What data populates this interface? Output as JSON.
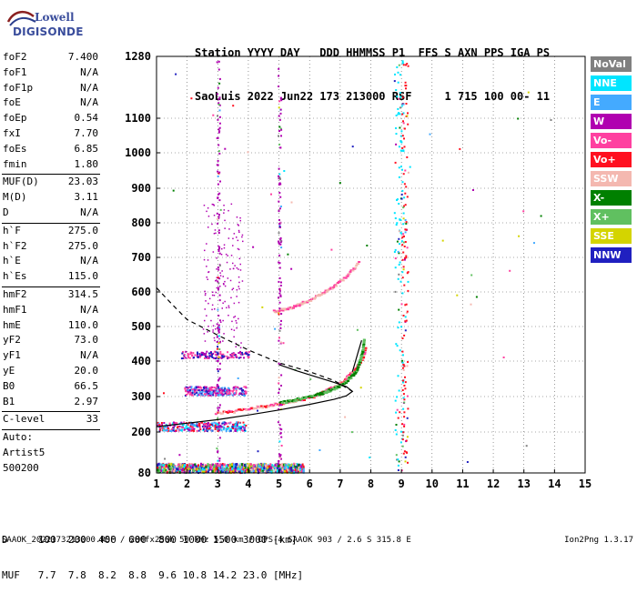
{
  "logo": {
    "line1": "Lowell",
    "line2": "DIGISONDE"
  },
  "header": {
    "line1": "Station YYYY DAY   DDD HHMMSS P1  FFS S AXN PPS IGA PS",
    "line2": "SaoLuis 2022 Jun22 173 213000 RSF     1 715 100 00- 11"
  },
  "params_group1": [
    {
      "k": "foF2",
      "v": "7.400"
    },
    {
      "k": "foF1",
      "v": "N/A"
    },
    {
      "k": "foF1p",
      "v": "N/A"
    },
    {
      "k": "foE",
      "v": "N/A"
    },
    {
      "k": "foEp",
      "v": "0.54"
    },
    {
      "k": "fxI",
      "v": "7.70"
    },
    {
      "k": "foEs",
      "v": "6.85"
    },
    {
      "k": "fmin",
      "v": "1.80"
    }
  ],
  "params_group2": [
    {
      "k": "MUF(D)",
      "v": "23.03"
    },
    {
      "k": "M(D)",
      "v": "3.11"
    },
    {
      "k": "D",
      "v": "N/A"
    }
  ],
  "params_group3": [
    {
      "k": "h`F",
      "v": "275.0"
    },
    {
      "k": "h`F2",
      "v": "275.0"
    },
    {
      "k": "h`E",
      "v": "N/A"
    },
    {
      "k": "h`Es",
      "v": "115.0"
    }
  ],
  "params_group4": [
    {
      "k": "hmF2",
      "v": "314.5"
    },
    {
      "k": "hmF1",
      "v": "N/A"
    },
    {
      "k": "hmE",
      "v": "110.0"
    },
    {
      "k": "yF2",
      "v": "73.0"
    },
    {
      "k": "yF1",
      "v": "N/A"
    },
    {
      "k": "yE",
      "v": "20.0"
    },
    {
      "k": "B0",
      "v": "66.5"
    },
    {
      "k": "B1",
      "v": "2.97"
    }
  ],
  "params_group5": [
    {
      "k": "C-level",
      "v": "33"
    }
  ],
  "auto": {
    "line1": "Auto:",
    "line2": "Artist5",
    "line3": "500200"
  },
  "legend": [
    {
      "label": "NoVal",
      "color": "#808080"
    },
    {
      "label": "NNE",
      "color": "#00e5ff"
    },
    {
      "label": "E",
      "color": "#44aaff"
    },
    {
      "label": "W",
      "color": "#b000b0"
    },
    {
      "label": "Vo-",
      "color": "#ff40a0"
    },
    {
      "label": "Vo+",
      "color": "#ff1020"
    },
    {
      "label": "SSW",
      "color": "#f4b8b0"
    },
    {
      "label": "X-",
      "color": "#008000"
    },
    {
      "label": "X+",
      "color": "#60c060"
    },
    {
      "label": "SSE",
      "color": "#d4d400"
    },
    {
      "label": "NNW",
      "color": "#2020c0"
    }
  ],
  "footer": {
    "line1": "D     100  200  400  600  800 1000 1500 3000 [km]",
    "line2": "MUF   7.7  7.8  8.2  8.8  9.6 10.8 14.2 23.0 [MHz]",
    "line3": "SAAOK_2022173213000.RSF / 280fx256h 50 kHz 5.0 km / DPS-4 SAAOK 903 / 2.6 S 315.8 E",
    "version": "Ion2Png 1.3.17"
  },
  "chart_data": {
    "type": "scatter",
    "xlim": [
      1,
      15
    ],
    "ylim": [
      80,
      1280
    ],
    "x_ticks": [
      1,
      2,
      3,
      4,
      5,
      6,
      7,
      8,
      9,
      10,
      11,
      12,
      13,
      14,
      15
    ],
    "y_ticks": [
      80,
      200,
      300,
      400,
      500,
      600,
      700,
      800,
      900,
      1000,
      1100,
      1280
    ],
    "y_tick_labels": [
      "80",
      "200",
      "300",
      "400",
      "500",
      "600",
      "700",
      "800",
      "900",
      "1000",
      "1100",
      "1280"
    ],
    "profile_solid": [
      [
        1.0,
        215
      ],
      [
        2.0,
        225
      ],
      [
        3.0,
        235
      ],
      [
        4.0,
        248
      ],
      [
        5.0,
        262
      ],
      [
        6.0,
        278
      ],
      [
        6.8,
        292
      ],
      [
        7.2,
        302
      ],
      [
        7.4,
        314.5
      ],
      [
        7.2,
        328
      ],
      [
        6.8,
        340
      ],
      [
        6.2,
        356
      ],
      [
        5.6,
        372
      ],
      [
        5.0,
        390
      ]
    ],
    "profile_dashed": [
      [
        1.0,
        612
      ],
      [
        1.5,
        565
      ],
      [
        2.0,
        520
      ],
      [
        3.0,
        475
      ],
      [
        4.0,
        432
      ],
      [
        5.0,
        395
      ],
      [
        6.0,
        370
      ],
      [
        6.8,
        345
      ],
      [
        7.4,
        314.5
      ]
    ],
    "profile_upper": [
      [
        7.4,
        370
      ],
      [
        7.5,
        400
      ],
      [
        7.6,
        430
      ],
      [
        7.7,
        460
      ]
    ],
    "traces": {
      "F_o_mode": [
        [
          2.9,
          255
        ],
        [
          3.5,
          260
        ],
        [
          4.0,
          268
        ],
        [
          4.5,
          275
        ],
        [
          5.0,
          282
        ],
        [
          5.5,
          290
        ],
        [
          6.0,
          300
        ],
        [
          6.3,
          310
        ],
        [
          6.6,
          322
        ],
        [
          6.9,
          335
        ],
        [
          7.1,
          348
        ],
        [
          7.3,
          365
        ],
        [
          7.5,
          385
        ],
        [
          7.7,
          410
        ],
        [
          7.8,
          440
        ]
      ],
      "F_x_mode": [
        [
          5.0,
          285
        ],
        [
          5.5,
          293
        ],
        [
          6.0,
          302
        ],
        [
          6.4,
          312
        ],
        [
          6.8,
          326
        ],
        [
          7.1,
          340
        ],
        [
          7.3,
          356
        ],
        [
          7.5,
          375
        ],
        [
          7.6,
          400
        ],
        [
          7.7,
          430
        ],
        [
          7.75,
          470
        ]
      ],
      "F2_multi": [
        [
          4.8,
          545
        ],
        [
          5.2,
          553
        ],
        [
          5.6,
          565
        ],
        [
          6.0,
          580
        ],
        [
          6.4,
          600
        ],
        [
          6.8,
          620
        ],
        [
          7.2,
          650
        ],
        [
          7.6,
          690
        ]
      ]
    }
  }
}
